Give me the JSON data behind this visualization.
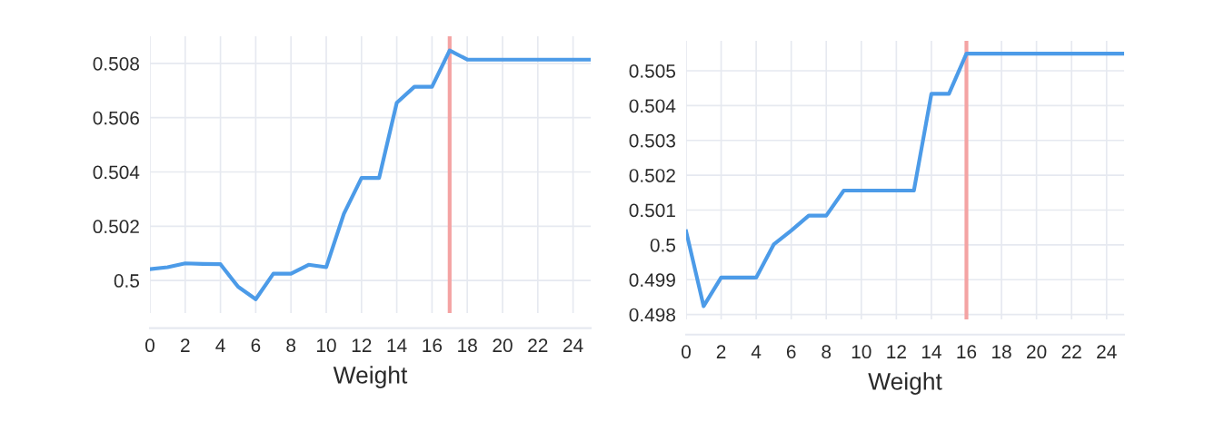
{
  "chart_data": [
    {
      "type": "line",
      "xlabel": "Weight",
      "x": [
        0,
        1,
        2,
        3,
        4,
        5,
        6,
        7,
        8,
        9,
        10,
        11,
        12,
        13,
        14,
        15,
        16,
        17,
        18,
        19,
        20,
        21,
        22,
        23,
        24,
        25
      ],
      "series": [
        {
          "color": "#4c9be8",
          "values": [
            0.50042,
            0.50049,
            0.50063,
            0.50061,
            0.5006,
            0.49977,
            0.49931,
            0.50025,
            0.50025,
            0.50058,
            0.50049,
            0.50246,
            0.50378,
            0.50378,
            0.50655,
            0.50714,
            0.50714,
            0.50848,
            0.50814,
            0.50814,
            0.50814,
            0.50814,
            0.50814,
            0.50814,
            0.50814,
            0.50814
          ]
        }
      ],
      "xlim": [
        0,
        25
      ],
      "xticks": [
        0,
        2,
        4,
        6,
        8,
        10,
        12,
        14,
        16,
        18,
        20,
        22,
        24
      ],
      "ylim": [
        0.4988,
        0.509
      ],
      "yticks": [
        0.5,
        0.502,
        0.504,
        0.506,
        0.508
      ],
      "ref_lines": [
        {
          "axis": "x",
          "value": 17,
          "color": "#f4a3a3"
        }
      ],
      "grid": true,
      "legend": false
    },
    {
      "type": "line",
      "xlabel": "Weight",
      "x": [
        0,
        1,
        2,
        3,
        4,
        5,
        6,
        7,
        8,
        9,
        10,
        11,
        12,
        13,
        14,
        15,
        16,
        17,
        18,
        19,
        20,
        21,
        22,
        23,
        24,
        25
      ],
      "series": [
        {
          "color": "#4c9be8",
          "values": [
            0.50039,
            0.49824,
            0.49906,
            0.49906,
            0.49906,
            0.50001,
            0.50041,
            0.50084,
            0.50084,
            0.50156,
            0.50156,
            0.50156,
            0.50156,
            0.50156,
            0.50434,
            0.50434,
            0.50549,
            0.50549,
            0.50549,
            0.50549,
            0.50549,
            0.50549,
            0.50549,
            0.50549,
            0.50549,
            0.50549
          ]
        }
      ],
      "xlim": [
        0,
        25
      ],
      "xticks": [
        0,
        2,
        4,
        6,
        8,
        10,
        12,
        14,
        16,
        18,
        20,
        22,
        24
      ],
      "ylim": [
        0.49786,
        0.50586
      ],
      "yticks": [
        0.498,
        0.499,
        0.5,
        0.501,
        0.502,
        0.503,
        0.504,
        0.505
      ],
      "ref_lines": [
        {
          "axis": "x",
          "value": 16,
          "color": "#f4a3a3"
        }
      ],
      "grid": true,
      "legend": false
    }
  ]
}
